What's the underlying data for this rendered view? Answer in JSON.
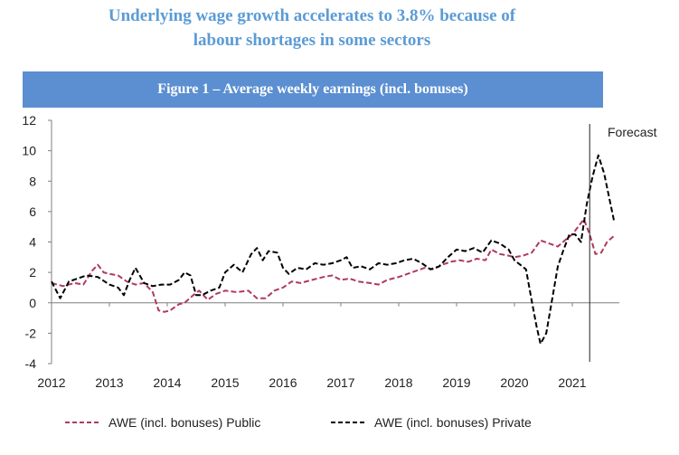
{
  "headline": {
    "line1": "Underlying wage growth accelerates to 3.8% because of",
    "line2": "labour shortages in some sectors"
  },
  "banner": {
    "title": "Figure 1 – Average weekly earnings (incl. bonuses)"
  },
  "chart_data": {
    "type": "line",
    "title": "Figure 1 – Average weekly earnings (incl. bonuses)",
    "xlabel": "",
    "ylabel": "",
    "xlim": [
      2012,
      2021.8
    ],
    "ylim": [
      -4,
      12
    ],
    "yticks": [
      -4,
      -2,
      0,
      2,
      4,
      6,
      8,
      10,
      12
    ],
    "xticks": [
      2012,
      2013,
      2014,
      2015,
      2016,
      2017,
      2018,
      2019,
      2020,
      2021
    ],
    "grid": false,
    "legend_position": "bottom",
    "annotations": [
      {
        "text": "Forecast",
        "x": 2021.3
      }
    ],
    "series": [
      {
        "name": "AWE (incl. bonuses) Public",
        "color": "#b03a5b",
        "points": [
          [
            2012.0,
            1.3
          ],
          [
            2012.2,
            1.1
          ],
          [
            2012.4,
            1.3
          ],
          [
            2012.55,
            1.2
          ],
          [
            2012.7,
            2.1
          ],
          [
            2012.8,
            2.5
          ],
          [
            2012.9,
            2.0
          ],
          [
            2013.0,
            1.9
          ],
          [
            2013.15,
            1.8
          ],
          [
            2013.3,
            1.4
          ],
          [
            2013.45,
            1.2
          ],
          [
            2013.6,
            1.3
          ],
          [
            2013.75,
            0.7
          ],
          [
            2013.85,
            -0.5
          ],
          [
            2013.95,
            -0.6
          ],
          [
            2014.05,
            -0.5
          ],
          [
            2014.2,
            -0.1
          ],
          [
            2014.3,
            0.0
          ],
          [
            2014.45,
            0.5
          ],
          [
            2014.55,
            0.8
          ],
          [
            2014.7,
            0.2
          ],
          [
            2014.85,
            0.6
          ],
          [
            2015.0,
            0.8
          ],
          [
            2015.2,
            0.7
          ],
          [
            2015.4,
            0.8
          ],
          [
            2015.55,
            0.3
          ],
          [
            2015.7,
            0.3
          ],
          [
            2015.85,
            0.8
          ],
          [
            2016.0,
            1.0
          ],
          [
            2016.15,
            1.4
          ],
          [
            2016.3,
            1.3
          ],
          [
            2016.5,
            1.5
          ],
          [
            2016.7,
            1.7
          ],
          [
            2016.85,
            1.8
          ],
          [
            2017.0,
            1.5
          ],
          [
            2017.15,
            1.6
          ],
          [
            2017.3,
            1.4
          ],
          [
            2017.5,
            1.3
          ],
          [
            2017.65,
            1.2
          ],
          [
            2017.8,
            1.5
          ],
          [
            2018.0,
            1.7
          ],
          [
            2018.15,
            1.9
          ],
          [
            2018.3,
            2.1
          ],
          [
            2018.45,
            2.3
          ],
          [
            2018.6,
            2.2
          ],
          [
            2018.75,
            2.5
          ],
          [
            2018.9,
            2.7
          ],
          [
            2019.05,
            2.8
          ],
          [
            2019.2,
            2.7
          ],
          [
            2019.35,
            2.9
          ],
          [
            2019.5,
            2.8
          ],
          [
            2019.6,
            3.5
          ],
          [
            2019.75,
            3.2
          ],
          [
            2019.9,
            3.1
          ],
          [
            2020.0,
            3.0
          ],
          [
            2020.15,
            3.1
          ],
          [
            2020.3,
            3.3
          ],
          [
            2020.45,
            4.1
          ],
          [
            2020.6,
            3.9
          ],
          [
            2020.75,
            3.7
          ],
          [
            2020.9,
            4.2
          ],
          [
            2021.0,
            4.5
          ],
          [
            2021.1,
            5.0
          ],
          [
            2021.2,
            5.5
          ],
          [
            2021.3,
            4.5
          ],
          [
            2021.4,
            3.2
          ],
          [
            2021.5,
            3.3
          ],
          [
            2021.6,
            4.0
          ],
          [
            2021.72,
            4.4
          ]
        ]
      },
      {
        "name": "AWE (incl. bonuses) Private",
        "color": "#000000",
        "points": [
          [
            2012.0,
            1.4
          ],
          [
            2012.15,
            0.3
          ],
          [
            2012.3,
            1.4
          ],
          [
            2012.45,
            1.6
          ],
          [
            2012.6,
            1.8
          ],
          [
            2012.8,
            1.7
          ],
          [
            2013.0,
            1.2
          ],
          [
            2013.15,
            1.0
          ],
          [
            2013.25,
            0.5
          ],
          [
            2013.35,
            1.5
          ],
          [
            2013.45,
            2.3
          ],
          [
            2013.6,
            1.3
          ],
          [
            2013.75,
            1.1
          ],
          [
            2013.9,
            1.2
          ],
          [
            2014.05,
            1.2
          ],
          [
            2014.2,
            1.5
          ],
          [
            2014.3,
            2.0
          ],
          [
            2014.4,
            1.8
          ],
          [
            2014.5,
            0.5
          ],
          [
            2014.6,
            0.5
          ],
          [
            2014.75,
            0.8
          ],
          [
            2014.9,
            1.0
          ],
          [
            2015.0,
            2.0
          ],
          [
            2015.15,
            2.5
          ],
          [
            2015.3,
            2.0
          ],
          [
            2015.45,
            3.2
          ],
          [
            2015.55,
            3.6
          ],
          [
            2015.65,
            2.8
          ],
          [
            2015.75,
            3.4
          ],
          [
            2015.9,
            3.3
          ],
          [
            2016.0,
            2.3
          ],
          [
            2016.1,
            1.9
          ],
          [
            2016.25,
            2.3
          ],
          [
            2016.4,
            2.2
          ],
          [
            2016.55,
            2.6
          ],
          [
            2016.7,
            2.5
          ],
          [
            2016.85,
            2.6
          ],
          [
            2017.0,
            2.8
          ],
          [
            2017.1,
            3.0
          ],
          [
            2017.2,
            2.3
          ],
          [
            2017.35,
            2.4
          ],
          [
            2017.5,
            2.2
          ],
          [
            2017.65,
            2.6
          ],
          [
            2017.8,
            2.5
          ],
          [
            2017.95,
            2.6
          ],
          [
            2018.1,
            2.8
          ],
          [
            2018.25,
            2.9
          ],
          [
            2018.4,
            2.6
          ],
          [
            2018.55,
            2.2
          ],
          [
            2018.7,
            2.4
          ],
          [
            2018.85,
            3.0
          ],
          [
            2019.0,
            3.5
          ],
          [
            2019.15,
            3.4
          ],
          [
            2019.3,
            3.6
          ],
          [
            2019.45,
            3.3
          ],
          [
            2019.6,
            4.1
          ],
          [
            2019.75,
            3.9
          ],
          [
            2019.9,
            3.5
          ],
          [
            2020.0,
            2.8
          ],
          [
            2020.1,
            2.5
          ],
          [
            2020.2,
            2.2
          ],
          [
            2020.3,
            0.1
          ],
          [
            2020.38,
            -1.5
          ],
          [
            2020.45,
            -2.7
          ],
          [
            2020.55,
            -2.0
          ],
          [
            2020.65,
            0.2
          ],
          [
            2020.75,
            2.4
          ],
          [
            2020.85,
            3.5
          ],
          [
            2020.95,
            4.5
          ],
          [
            2021.05,
            4.5
          ],
          [
            2021.15,
            4.0
          ],
          [
            2021.25,
            6.5
          ],
          [
            2021.35,
            8.3
          ],
          [
            2021.45,
            9.7
          ],
          [
            2021.55,
            8.5
          ],
          [
            2021.72,
            5.4
          ]
        ]
      }
    ]
  }
}
